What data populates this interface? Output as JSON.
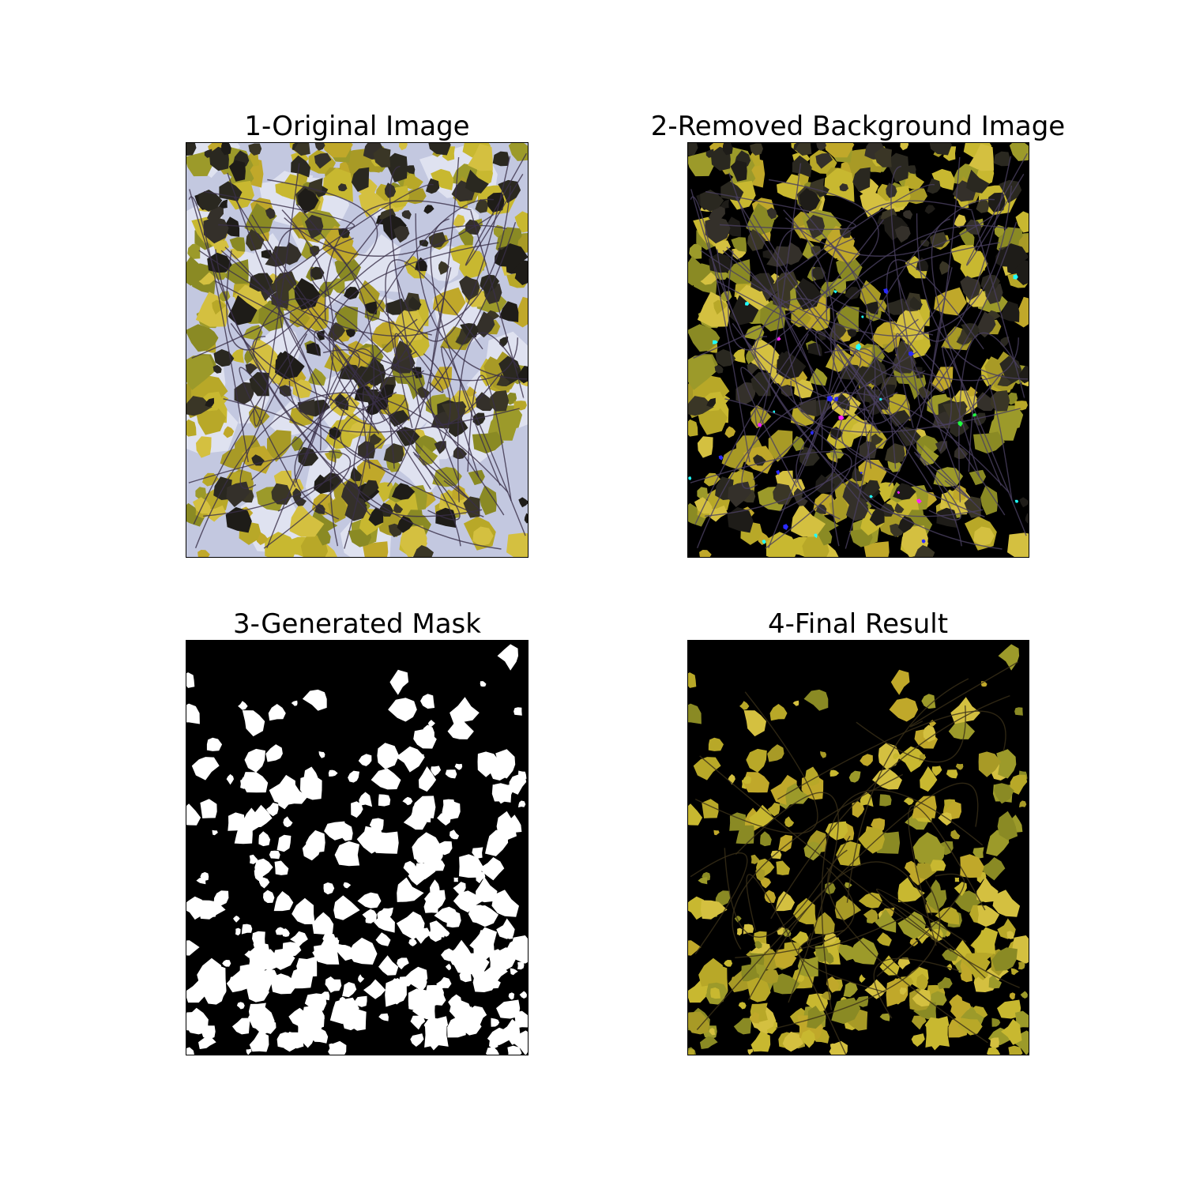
{
  "figure": {
    "panels": [
      {
        "title": "1-Original Image",
        "kind": "original-photo"
      },
      {
        "title": "2-Removed Background Image",
        "kind": "background-removed"
      },
      {
        "title": "3-Generated Mask",
        "kind": "binary-mask"
      },
      {
        "title": "4-Final Result",
        "kind": "masked-result"
      }
    ]
  },
  "colors": {
    "page_background": "#ffffff",
    "mask_background": "#000000",
    "mask_foreground": "#ffffff",
    "sky": "#c3c8e0",
    "leaf_yellow": "#c8b830",
    "leaf_dark": "#2a2820",
    "leaf_green": "#8a9a2a"
  }
}
